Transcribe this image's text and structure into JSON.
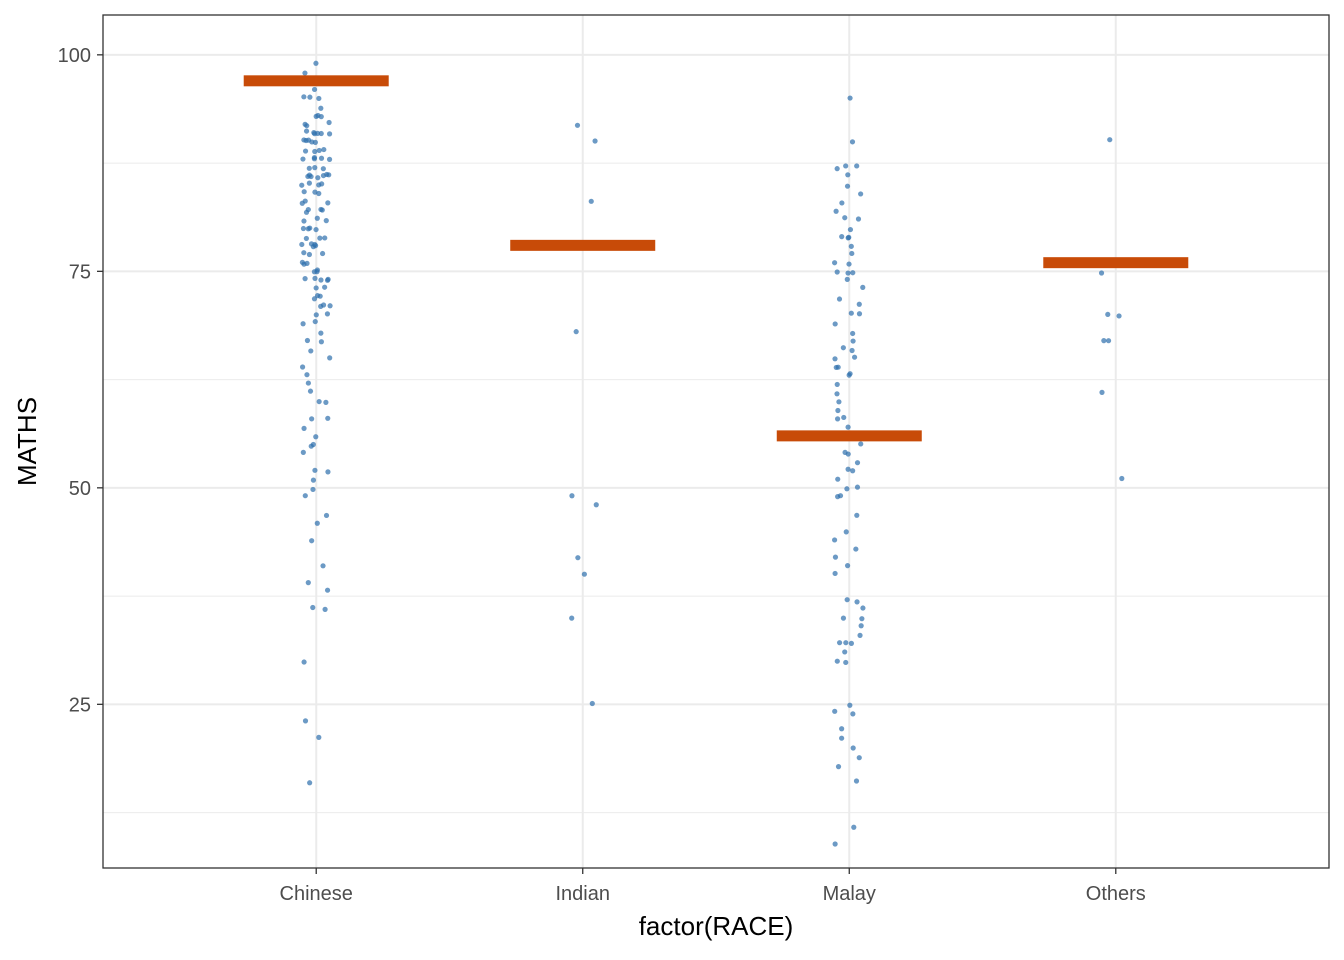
{
  "chart_data": {
    "type": "scatter",
    "title": "",
    "xlabel": "factor(RACE)",
    "ylabel": "MATHS",
    "categories": [
      "Chinese",
      "Indian",
      "Malay",
      "Others"
    ],
    "ylim": [
      6.1,
      104.6
    ],
    "y_ticks": [
      25,
      50,
      75,
      100
    ],
    "y_tick_labels": [
      "25",
      "50",
      "75",
      "100"
    ],
    "grid": true,
    "legend": "none",
    "colors": {
      "points": "#2e6fad",
      "summary": "#c84b08",
      "grid": "#ebebeb",
      "panel_border": "#333333"
    },
    "series": [
      {
        "category": "Chinese",
        "summary": 97,
        "values": [
          99,
          98,
          96,
          95,
          95,
          95,
          94,
          93,
          93,
          93,
          92,
          92,
          92,
          91,
          91,
          91,
          91,
          91,
          91,
          90,
          90,
          90,
          90,
          90,
          89,
          89,
          89,
          89,
          88,
          88,
          88,
          88,
          88,
          87,
          87,
          87,
          86,
          86,
          86,
          86,
          86,
          86,
          86,
          85,
          85,
          85,
          85,
          84,
          84,
          84,
          83,
          83,
          83,
          82,
          82,
          82,
          82,
          81,
          81,
          81,
          80,
          80,
          80,
          80,
          79,
          79,
          79,
          78,
          78,
          78,
          78,
          78,
          77,
          77,
          77,
          76,
          76,
          76,
          75,
          75,
          75,
          74,
          74,
          74,
          74,
          74,
          73,
          73,
          72,
          72,
          72,
          71,
          71,
          71,
          70,
          70,
          69,
          69,
          68,
          67,
          67,
          66,
          65,
          64,
          63,
          62,
          61,
          60,
          60,
          58,
          58,
          57,
          56,
          55,
          55,
          54,
          52,
          52,
          51,
          50,
          49,
          47,
          46,
          44,
          41,
          39,
          38,
          36,
          36,
          30,
          23,
          21,
          16
        ]
      },
      {
        "category": "Indian",
        "summary": 78,
        "values": [
          92,
          90,
          83,
          68,
          49,
          48,
          42,
          40,
          35,
          25
        ]
      },
      {
        "category": "Malay",
        "summary": 56,
        "values": [
          95,
          90,
          87,
          87,
          87,
          86,
          85,
          84,
          83,
          82,
          81,
          81,
          80,
          79,
          79,
          79,
          78,
          77,
          76,
          76,
          75,
          75,
          75,
          74,
          73,
          72,
          71,
          70,
          70,
          69,
          68,
          67,
          66,
          66,
          65,
          65,
          64,
          64,
          63,
          63,
          62,
          61,
          60,
          59,
          58,
          58,
          57,
          55,
          54,
          54,
          53,
          52,
          52,
          51,
          50,
          50,
          49,
          49,
          47,
          45,
          44,
          43,
          42,
          41,
          40,
          37,
          37,
          36,
          35,
          35,
          34,
          33,
          32,
          32,
          32,
          31,
          30,
          30,
          25,
          24,
          24,
          22,
          21,
          20,
          19,
          18,
          16,
          11,
          9
        ]
      },
      {
        "category": "Others",
        "summary": 76,
        "values": [
          90,
          75,
          70,
          70,
          67,
          67,
          61,
          51
        ]
      }
    ]
  }
}
